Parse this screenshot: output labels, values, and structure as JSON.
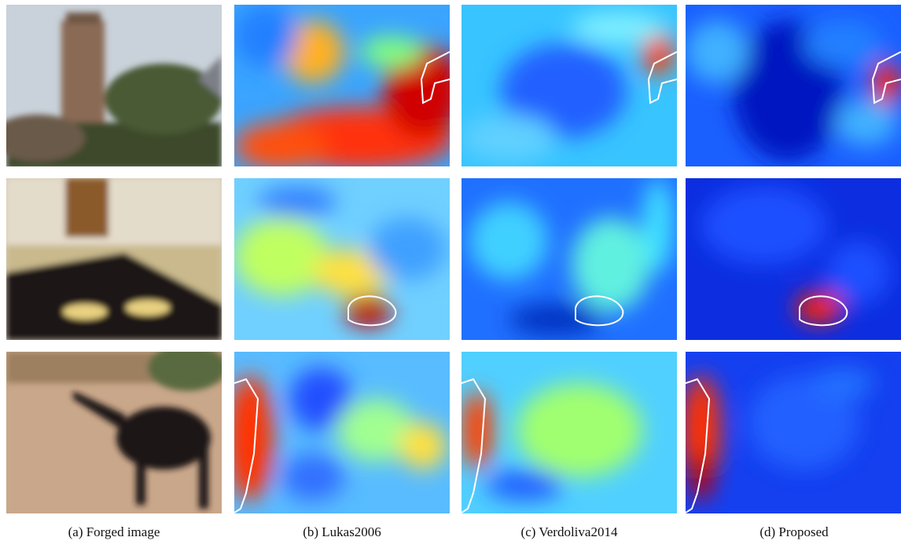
{
  "captions": [
    "(a) Forged image",
    "(b) Lukas2006",
    "(c) Verdoliva2014",
    "(d) Proposed"
  ]
}
